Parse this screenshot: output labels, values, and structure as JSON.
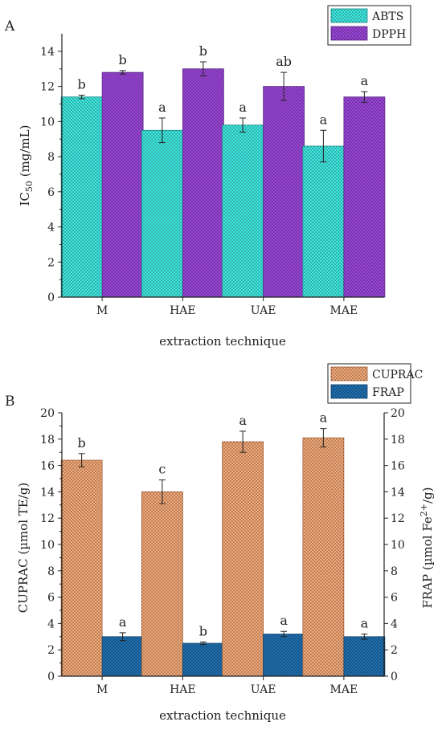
{
  "chart_data": [
    {
      "type": "bar",
      "panel": "A",
      "categories": [
        "M",
        "HAE",
        "UAE",
        "MAE"
      ],
      "series": [
        {
          "name": "ABTS",
          "values": [
            11.4,
            9.5,
            9.8,
            8.6
          ],
          "errors": [
            0.1,
            0.7,
            0.4,
            0.9
          ],
          "letters": [
            "b",
            "a",
            "a",
            "a"
          ],
          "color": "#3fe8e0",
          "stroke": "#1a8f8a"
        },
        {
          "name": "DPPH",
          "values": [
            12.8,
            13.0,
            12.0,
            11.4
          ],
          "errors": [
            0.1,
            0.4,
            0.8,
            0.3
          ],
          "letters": [
            "b",
            "b",
            "ab",
            "a"
          ],
          "color": "#9a45d8",
          "stroke": "#5a2a86"
        }
      ],
      "xlabel": "extraction technique",
      "ylabel_main": "IC",
      "ylabel_sub": "50",
      "ylabel_unit": " (mg/mL)",
      "ylim": [
        0,
        15
      ],
      "yticks": [
        "0",
        "2",
        "4",
        "6",
        "8",
        "10",
        "12",
        "14"
      ],
      "grid": false,
      "legend": "top-right"
    },
    {
      "type": "bar",
      "panel": "B",
      "categories": [
        "M",
        "HAE",
        "UAE",
        "MAE"
      ],
      "series": [
        {
          "name": "CUPRAC",
          "values": [
            16.4,
            14.0,
            17.8,
            18.1
          ],
          "errors": [
            0.5,
            0.9,
            0.8,
            0.7
          ],
          "letters": [
            "b",
            "c",
            "a",
            "a"
          ],
          "color": "#f2a877",
          "stroke": "#a0603a"
        },
        {
          "name": "FRAP",
          "values": [
            3.0,
            2.5,
            3.2,
            3.0
          ],
          "errors": [
            0.3,
            0.1,
            0.2,
            0.2
          ],
          "letters": [
            "a",
            "b",
            "a",
            "a"
          ],
          "color": "#1f6fb0",
          "stroke": "#12436c"
        }
      ],
      "xlabel": "extraction technique",
      "ylabel_left": "CUPRAC (µmol TE/g)",
      "ylabel_right_main": "FRAP (µmol Fe",
      "ylabel_right_sup": "2+",
      "ylabel_right_end": "/g)",
      "ylim": [
        0,
        20
      ],
      "yticks": [
        "0",
        "2",
        "4",
        "6",
        "8",
        "10",
        "12",
        "14",
        "16",
        "18",
        "20"
      ],
      "y2ticks": [
        "0",
        "2",
        "4",
        "6",
        "8",
        "10",
        "12",
        "14",
        "16",
        "18",
        "20"
      ],
      "grid": false,
      "legend": "top-right"
    }
  ]
}
